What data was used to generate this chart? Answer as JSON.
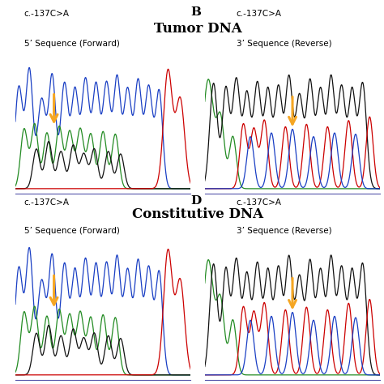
{
  "title_top": "Tumor DNA",
  "title_mid": "Constitutive DNA",
  "panel_B_letter": "B",
  "panel_D_letter": "D",
  "panel_A_label1": "c.-137C>A",
  "panel_A_label2": "5’ Sequence (Forward)",
  "panel_B_label1": "c.-137C>A",
  "panel_B_label2": "3’ Sequence (Reverse)",
  "panel_C_label1": "c.-137C>A",
  "panel_C_label2": "5’ Sequence (Forward)",
  "panel_D_label1": "c.-137C>A",
  "panel_D_label2": "3’ Sequence (Reverse)",
  "arrow_color": "#F5A623",
  "col_blue": "#1A3FC4",
  "col_green": "#228B22",
  "col_black": "#111111",
  "col_red": "#CC0000",
  "background": "#ffffff"
}
